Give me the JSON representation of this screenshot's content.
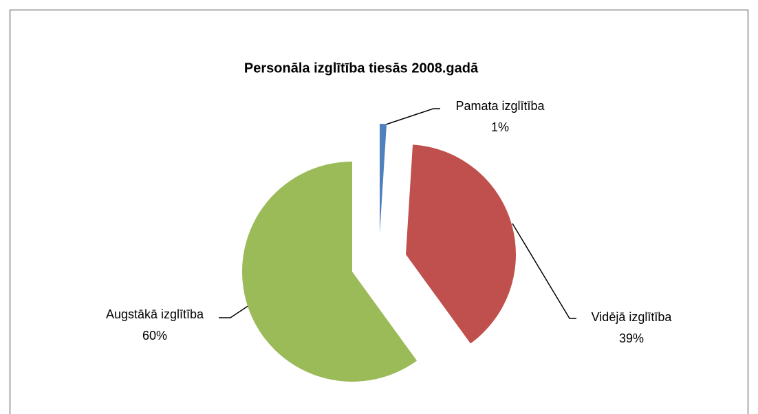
{
  "chart_data": {
    "type": "pie",
    "title": "Personāla izglītība tiesās 2008.gadā",
    "categories": [
      "Pamata izglītība",
      "Vidējā izglītība",
      "Augstākā izglītība"
    ],
    "values": [
      1,
      39,
      60
    ],
    "value_labels": [
      "1%",
      "39%",
      "60%"
    ],
    "colors": [
      "#4f81bd",
      "#c0504d",
      "#9bbb59"
    ]
  }
}
